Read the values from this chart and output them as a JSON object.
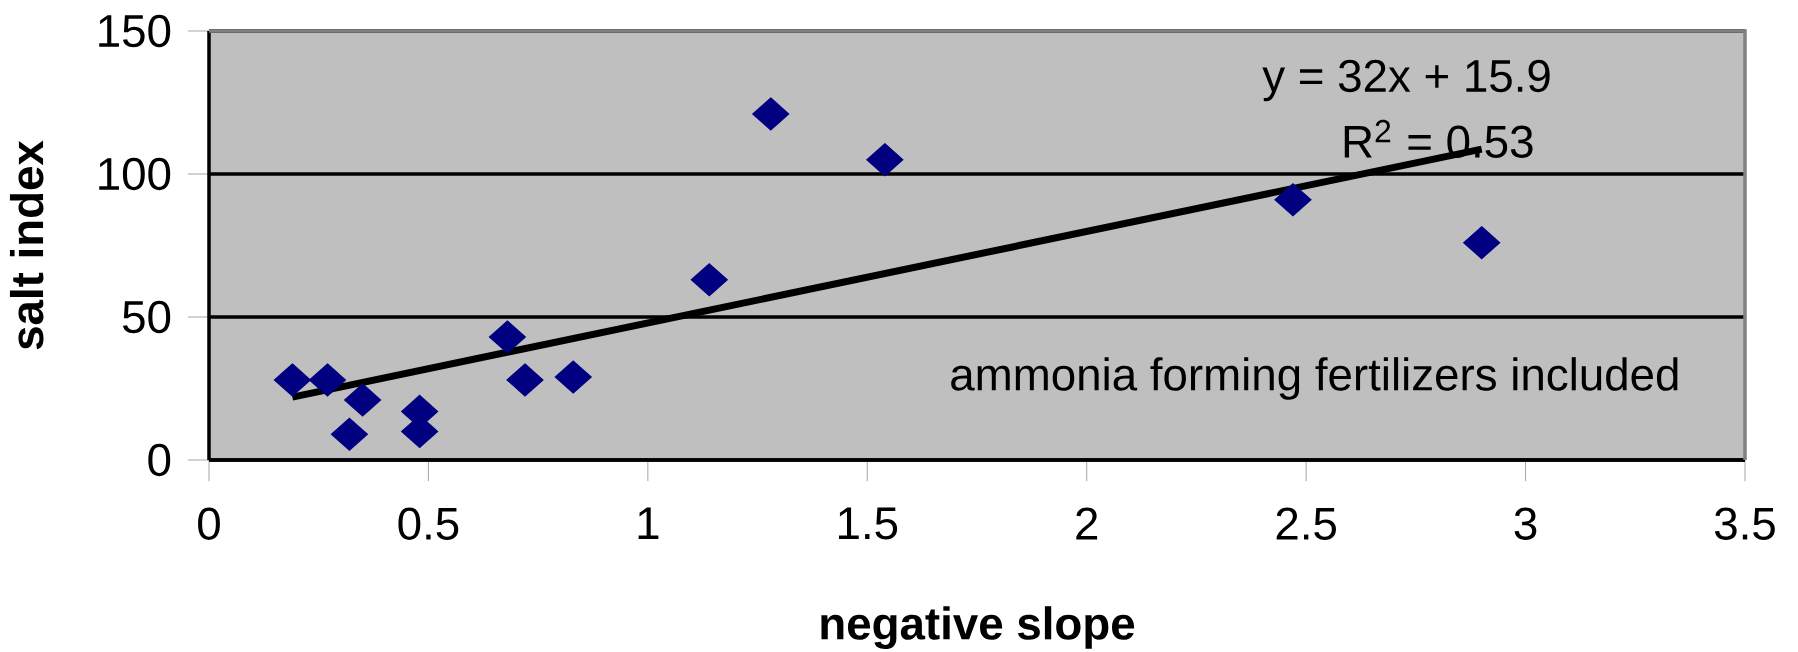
{
  "chart_data": {
    "type": "scatter",
    "xlabel": "negative slope",
    "ylabel": "salt index",
    "series": [
      {
        "color": "#000080",
        "marker": "diamond",
        "x": [
          0.19,
          0.27,
          0.35,
          0.32,
          0.48,
          0.48,
          0.68,
          0.72,
          0.83,
          1.14,
          1.28,
          1.54,
          2.47,
          2.9
        ],
        "values": [
          28,
          28,
          21,
          9,
          17,
          10,
          43,
          28,
          29,
          63,
          121,
          105,
          91,
          76
        ]
      },
      {
        "type": "line",
        "marker": "none",
        "color": "#000000",
        "x": [
          0.19,
          2.9
        ],
        "values": [
          22,
          108.7
        ]
      }
    ],
    "xlim": [
      0,
      3.5
    ],
    "xticks": [
      0,
      0.5,
      1,
      1.5,
      2,
      2.5,
      3,
      3.5
    ],
    "ylim": [
      0,
      150
    ],
    "yticks": [
      0,
      50,
      100,
      150
    ],
    "grid": "y",
    "annotations": [
      "y = 32x + 15.9",
      "R$^{2}$ = 0.53",
      "ammonia forming fertilizers included"
    ]
  }
}
